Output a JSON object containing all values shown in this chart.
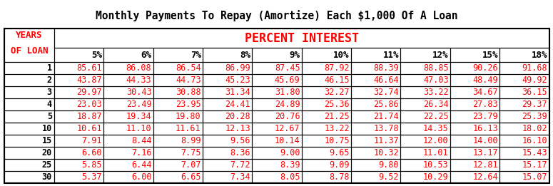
{
  "title": "Monthly Payments To Repay (Amortize) Each $1,000 Of A Loan",
  "header_left1": "YEARS",
  "header_left2": "OF LOAN",
  "header_center": "PERCENT INTEREST",
  "col_headers": [
    "5%",
    "6%",
    "7%",
    "8%",
    "9%",
    "10%",
    "11%",
    "12%",
    "15%",
    "18%"
  ],
  "row_labels": [
    "1",
    "2",
    "3",
    "4",
    "5",
    "10",
    "15",
    "20",
    "25",
    "30"
  ],
  "table_data": [
    [
      85.61,
      86.08,
      86.54,
      86.99,
      87.45,
      87.92,
      88.39,
      88.85,
      90.26,
      91.68
    ],
    [
      43.87,
      44.33,
      44.73,
      45.23,
      45.69,
      46.15,
      46.64,
      47.03,
      48.49,
      49.92
    ],
    [
      29.97,
      30.43,
      30.88,
      31.34,
      31.8,
      32.27,
      32.74,
      33.22,
      34.67,
      36.15
    ],
    [
      23.03,
      23.49,
      23.95,
      24.41,
      24.89,
      25.36,
      25.86,
      26.34,
      27.83,
      29.37
    ],
    [
      18.87,
      19.34,
      19.8,
      20.28,
      20.76,
      21.25,
      21.74,
      22.25,
      23.79,
      25.39
    ],
    [
      10.61,
      11.1,
      11.61,
      12.13,
      12.67,
      13.22,
      13.78,
      14.35,
      16.13,
      18.02
    ],
    [
      7.91,
      8.44,
      8.99,
      9.56,
      10.14,
      10.75,
      11.37,
      12.0,
      14.0,
      16.1
    ],
    [
      6.6,
      7.16,
      7.75,
      8.36,
      9.0,
      9.65,
      10.32,
      11.01,
      13.17,
      15.43
    ],
    [
      5.85,
      6.44,
      7.07,
      7.72,
      8.39,
      9.09,
      9.8,
      10.53,
      12.81,
      15.17
    ],
    [
      5.37,
      6.0,
      6.65,
      7.34,
      8.05,
      8.78,
      9.52,
      10.29,
      12.64,
      15.07
    ]
  ],
  "title_color": "#000000",
  "header_center_color": "#FF0000",
  "data_color": "#FF0000",
  "col_header_color": "#000000",
  "row_label_color": "#000000",
  "left_header_color": "#FF0000",
  "bg_color": "#FFFFFF",
  "grid_color": "#000000",
  "title_fontsize": 10.5,
  "data_fontsize": 8.5,
  "header_fontsize": 9.0,
  "percent_interest_fontsize": 12.0
}
